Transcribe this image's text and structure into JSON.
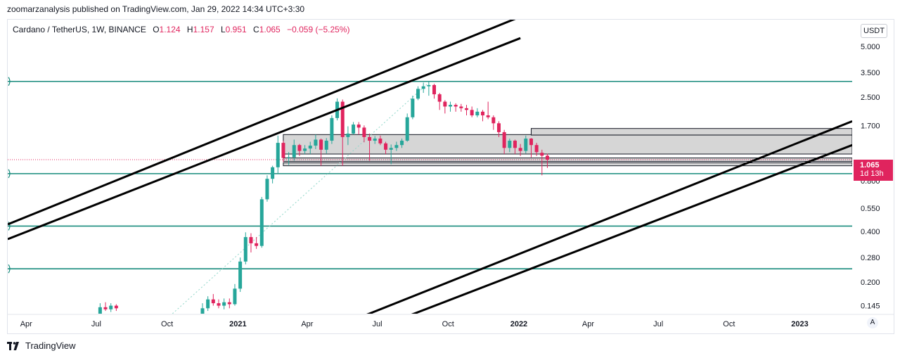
{
  "header": {
    "published": "zoomarzanalysis published on TradingView.com, Jan 29, 2022 14:34 UTC+3:30"
  },
  "legend": {
    "symbol": "Cardano / TetherUS, 1W, BINANCE",
    "open_label": "O",
    "open": "1.124",
    "high_label": "H",
    "high": "1.157",
    "low_label": "L",
    "low": "0.951",
    "close_label": "C",
    "close": "1.065",
    "change": "−0.059 (−5.25%)"
  },
  "currency_button": "USDT",
  "price_tag": {
    "price": "1.065",
    "countdown": "1d 13h"
  },
  "auto_button": "A",
  "brand": {
    "name": "TradingView"
  },
  "chart_data": {
    "type": "candlestick",
    "symbol": "ADAUSDT",
    "interval": "1W",
    "scale": "log",
    "y_ticks": [
      "5.000",
      "3.500",
      "2.500",
      "1.700",
      "1.065",
      "0.800",
      "0.550",
      "0.400",
      "0.280",
      "0.200",
      "0.145"
    ],
    "y_tick_values": [
      5.0,
      3.5,
      2.5,
      1.7,
      1.065,
      0.8,
      0.55,
      0.4,
      0.28,
      0.2,
      0.145
    ],
    "ylim": [
      0.13,
      7.2
    ],
    "x_ticks": [
      "Apr",
      "Jul",
      "Oct",
      "2021",
      "Apr",
      "Jul",
      "Oct",
      "2022",
      "Apr",
      "Jul",
      "Oct",
      "2023"
    ],
    "x_tick_dates": [
      "2020-04-01",
      "2020-07-01",
      "2020-10-01",
      "2021-01-01",
      "2021-04-01",
      "2021-07-01",
      "2021-10-01",
      "2022-01-01",
      "2022-04-01",
      "2022-07-01",
      "2022-10-01",
      "2023-01-01"
    ],
    "xlim": [
      "2020-03-08",
      "2023-03-10"
    ],
    "up_color": "#26a69a",
    "down_color": "#e0245e",
    "candles": [
      [
        "2020-07-06",
        0.13,
        0.15,
        0.125,
        0.142
      ],
      [
        "2020-07-13",
        0.142,
        0.152,
        0.135,
        0.138
      ],
      [
        "2020-07-20",
        0.138,
        0.15,
        0.133,
        0.145
      ],
      [
        "2020-07-27",
        0.145,
        0.148,
        0.135,
        0.14
      ],
      [
        "2020-11-16",
        0.105,
        0.15,
        0.1,
        0.14
      ],
      [
        "2020-11-23",
        0.14,
        0.165,
        0.135,
        0.158
      ],
      [
        "2020-11-30",
        0.158,
        0.17,
        0.145,
        0.15
      ],
      [
        "2020-12-07",
        0.15,
        0.158,
        0.14,
        0.145
      ],
      [
        "2020-12-14",
        0.145,
        0.16,
        0.138,
        0.152
      ],
      [
        "2020-12-21",
        0.152,
        0.16,
        0.14,
        0.148
      ],
      [
        "2020-12-28",
        0.148,
        0.195,
        0.145,
        0.183
      ],
      [
        "2021-01-04",
        0.183,
        0.28,
        0.175,
        0.265
      ],
      [
        "2021-01-11",
        0.265,
        0.395,
        0.255,
        0.37
      ],
      [
        "2021-01-18",
        0.37,
        0.39,
        0.3,
        0.34
      ],
      [
        "2021-01-25",
        0.34,
        0.37,
        0.315,
        0.328
      ],
      [
        "2021-02-01",
        0.328,
        0.64,
        0.32,
        0.62
      ],
      [
        "2021-02-08",
        0.62,
        0.86,
        0.6,
        0.82
      ],
      [
        "2021-02-15",
        0.82,
        0.98,
        0.77,
        0.96
      ],
      [
        "2021-02-22",
        0.96,
        1.48,
        0.88,
        1.34
      ],
      [
        "2021-03-01",
        1.34,
        1.38,
        1.03,
        1.09
      ],
      [
        "2021-03-08",
        1.09,
        1.18,
        0.99,
        1.1
      ],
      [
        "2021-03-15",
        1.1,
        1.4,
        1.05,
        1.3
      ],
      [
        "2021-03-22",
        1.3,
        1.32,
        1.12,
        1.2
      ],
      [
        "2021-03-29",
        1.2,
        1.3,
        1.15,
        1.24
      ],
      [
        "2021-04-05",
        1.24,
        1.36,
        1.15,
        1.29
      ],
      [
        "2021-04-12",
        1.29,
        1.5,
        1.23,
        1.4
      ],
      [
        "2021-04-19",
        1.4,
        1.42,
        0.98,
        1.22
      ],
      [
        "2021-04-26",
        1.22,
        1.43,
        1.16,
        1.38
      ],
      [
        "2021-05-03",
        1.38,
        1.95,
        1.32,
        1.88
      ],
      [
        "2021-05-10",
        1.88,
        2.46,
        1.82,
        2.35
      ],
      [
        "2021-05-17",
        2.35,
        2.42,
        0.98,
        1.45
      ],
      [
        "2021-05-24",
        1.45,
        1.68,
        1.3,
        1.52
      ],
      [
        "2021-05-31",
        1.52,
        1.78,
        1.5,
        1.72
      ],
      [
        "2021-06-07",
        1.72,
        1.78,
        1.5,
        1.65
      ],
      [
        "2021-06-14",
        1.65,
        1.7,
        1.35,
        1.45
      ],
      [
        "2021-06-21",
        1.45,
        1.52,
        1.05,
        1.38
      ],
      [
        "2021-06-28",
        1.38,
        1.47,
        1.32,
        1.42
      ],
      [
        "2021-07-05",
        1.42,
        1.48,
        1.3,
        1.33
      ],
      [
        "2021-07-12",
        1.33,
        1.36,
        1.15,
        1.22
      ],
      [
        "2021-07-19",
        1.22,
        1.31,
        1.0,
        1.25
      ],
      [
        "2021-07-26",
        1.25,
        1.36,
        1.2,
        1.3
      ],
      [
        "2021-08-02",
        1.3,
        1.42,
        1.25,
        1.38
      ],
      [
        "2021-08-09",
        1.38,
        2.0,
        1.36,
        1.9
      ],
      [
        "2021-08-16",
        1.9,
        2.55,
        1.85,
        2.45
      ],
      [
        "2021-08-23",
        2.45,
        2.9,
        2.4,
        2.8
      ],
      [
        "2021-08-30",
        2.8,
        3.05,
        2.65,
        2.9
      ],
      [
        "2021-09-06",
        2.9,
        3.1,
        2.55,
        2.95
      ],
      [
        "2021-09-13",
        2.95,
        3.0,
        2.45,
        2.6
      ],
      [
        "2021-09-20",
        2.6,
        2.65,
        2.1,
        2.35
      ],
      [
        "2021-09-27",
        2.35,
        2.4,
        2.0,
        2.2
      ],
      [
        "2021-10-04",
        2.2,
        2.35,
        2.05,
        2.25
      ],
      [
        "2021-10-11",
        2.25,
        2.3,
        2.05,
        2.2
      ],
      [
        "2021-10-18",
        2.2,
        2.28,
        2.05,
        2.15
      ],
      [
        "2021-10-25",
        2.15,
        2.25,
        1.95,
        2.1
      ],
      [
        "2021-11-01",
        2.1,
        2.2,
        1.9,
        1.95
      ],
      [
        "2021-11-08",
        1.95,
        2.15,
        1.9,
        2.05
      ],
      [
        "2021-11-15",
        2.05,
        2.1,
        1.8,
        1.95
      ],
      [
        "2021-11-22",
        1.95,
        2.35,
        1.85,
        1.9
      ],
      [
        "2021-11-29",
        1.9,
        1.95,
        1.6,
        1.75
      ],
      [
        "2021-12-06",
        1.75,
        1.8,
        1.45,
        1.55
      ],
      [
        "2021-12-13",
        1.55,
        1.6,
        1.15,
        1.25
      ],
      [
        "2021-12-20",
        1.25,
        1.42,
        1.18,
        1.38
      ],
      [
        "2021-12-27",
        1.38,
        1.4,
        1.15,
        1.25
      ],
      [
        "2022-01-03",
        1.25,
        1.32,
        1.12,
        1.2
      ],
      [
        "2022-01-10",
        1.2,
        1.48,
        1.16,
        1.42
      ],
      [
        "2022-01-17",
        1.42,
        1.43,
        1.1,
        1.3
      ],
      [
        "2022-01-24",
        1.3,
        1.34,
        1.12,
        1.18
      ],
      [
        "2022-01-31",
        1.17,
        1.22,
        0.86,
        1.124
      ],
      [
        "2022-02-07",
        1.124,
        1.157,
        0.951,
        1.065
      ]
    ],
    "horizontal_levels": [
      3.1,
      0.88,
      0.43,
      0.24
    ],
    "last_price": 1.065,
    "zones": [
      {
        "from": 1.15,
        "to": 1.5,
        "start": "2021-03-01",
        "end": "2023-03-10"
      },
      {
        "from": 1.49,
        "to": 1.63,
        "start": "2022-01-17",
        "end": "2023-03-10"
      },
      {
        "from": 1.04,
        "to": 1.09,
        "start": "2021-03-01",
        "end": "2023-03-10"
      },
      {
        "from": 0.98,
        "to": 1.02,
        "start": "2021-03-01",
        "end": "2023-03-10"
      }
    ],
    "trendlines": [
      {
        "from": [
          "2020-03-08",
          0.44
        ],
        "to": [
          "2022-01-03",
          7.5
        ]
      },
      {
        "from": [
          "2020-03-08",
          0.36
        ],
        "to": [
          "2022-01-03",
          5.6
        ]
      },
      {
        "from": [
          "2021-04-19",
          0.1
        ],
        "to": [
          "2023-03-10",
          1.8
        ]
      },
      {
        "from": [
          "2021-06-14",
          0.1
        ],
        "to": [
          "2023-03-10",
          1.3
        ]
      }
    ],
    "dotted_line": {
      "from": [
        "2020-10-08",
        0.13
      ],
      "to": [
        "2021-09-06",
        3.05
      ]
    },
    "left_markers": [
      3.1,
      0.88,
      0.43,
      0.24
    ]
  }
}
